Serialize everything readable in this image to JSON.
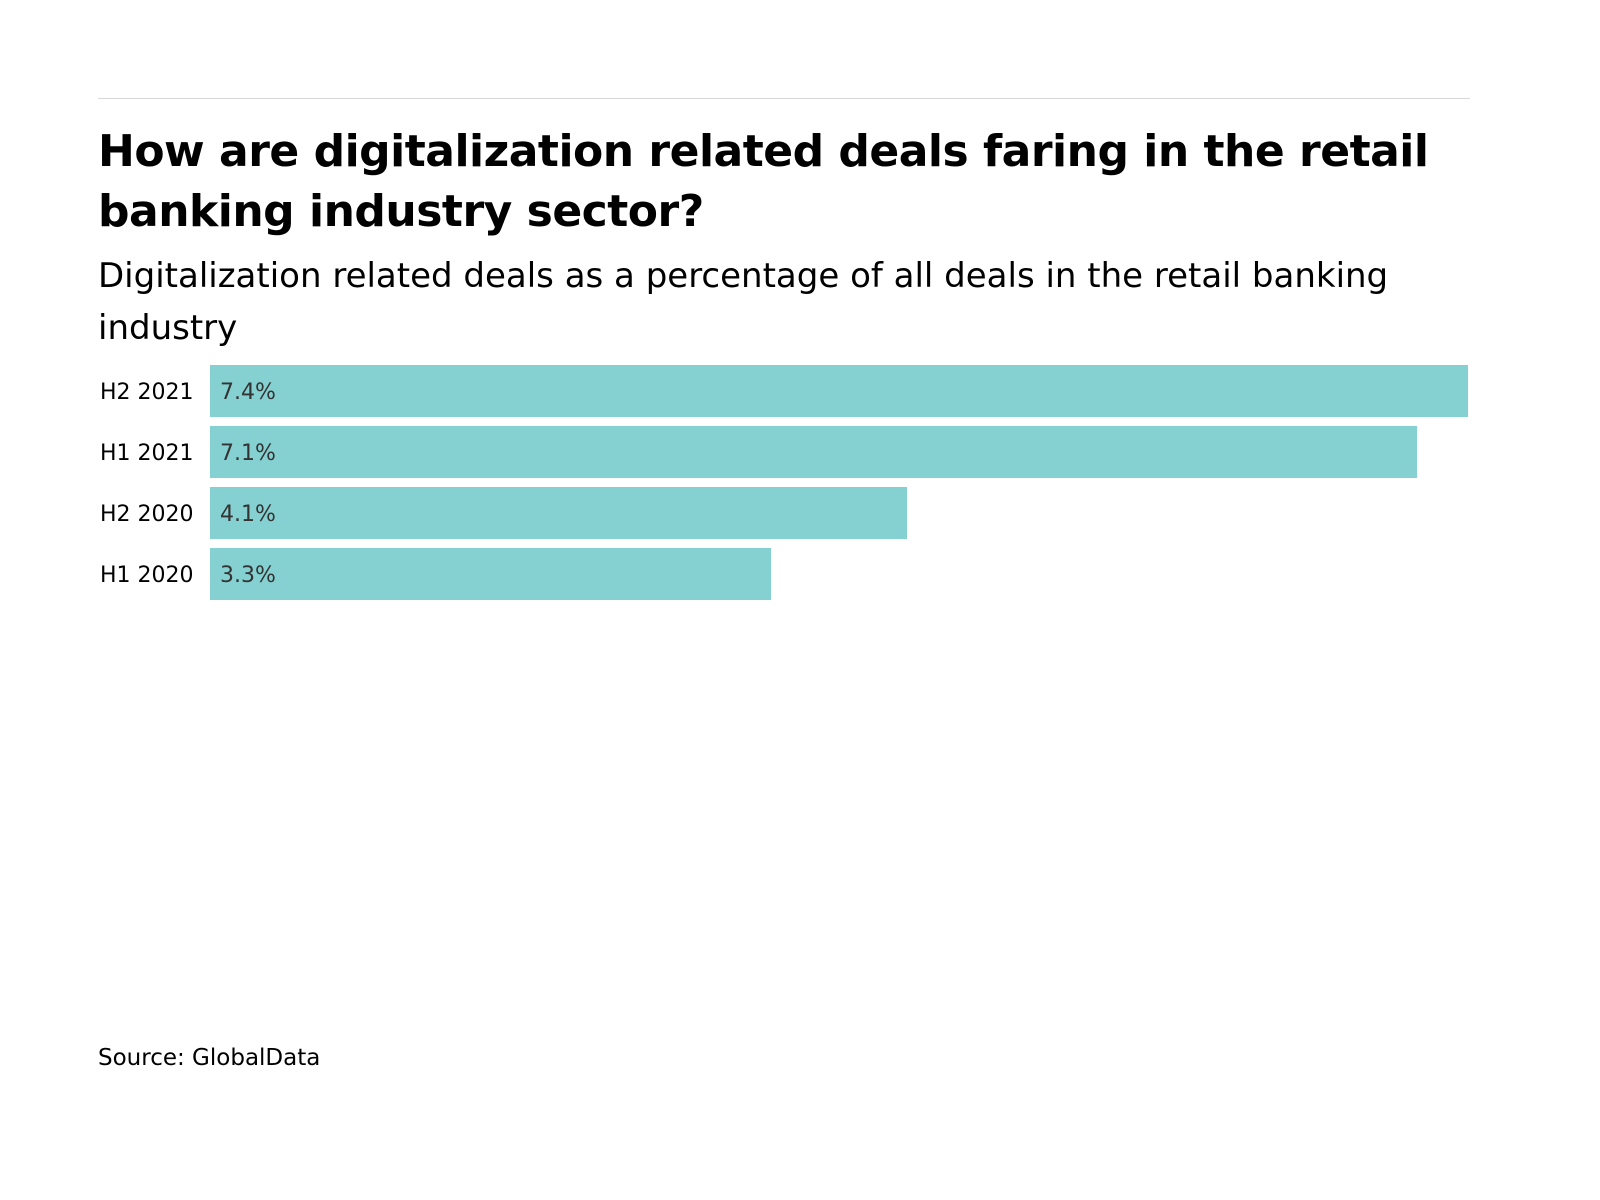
{
  "chart_data": {
    "type": "bar",
    "orientation": "horizontal",
    "title": "How are digitalization related deals faring in the retail banking industry sector?",
    "subtitle": "Digitalization related deals as a percentage of all deals in the retail banking industry",
    "categories": [
      "H2 2021",
      "H1 2021",
      "H2 2020",
      "H1 2020"
    ],
    "values": [
      7.4,
      7.1,
      4.1,
      3.3
    ],
    "data_labels": [
      "7.4%",
      "7.1%",
      "4.1%",
      "3.3%"
    ],
    "unit": "%",
    "xlim": [
      0,
      7.4
    ],
    "grid": false,
    "bar_color": "#85d0d1",
    "label_color": "#333333"
  },
  "source": "Source: GlobalData"
}
